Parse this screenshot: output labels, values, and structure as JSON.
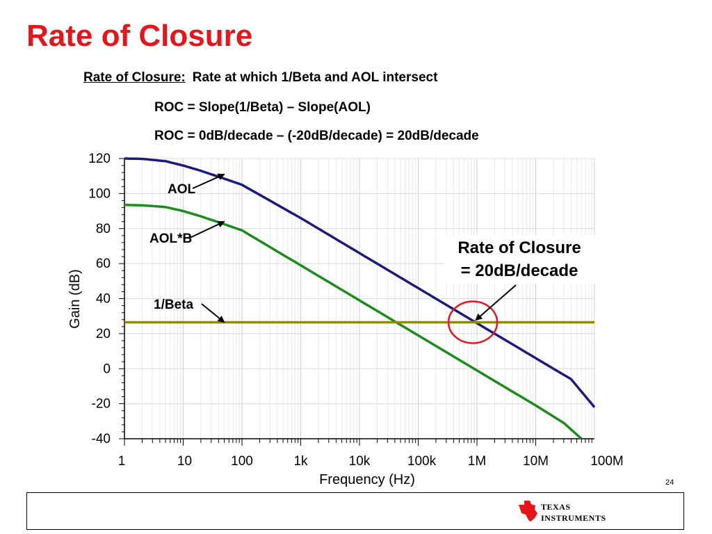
{
  "slide": {
    "title": "Rate of Closure",
    "definition_term": "Rate of Closure:",
    "definition_text": "Rate at which 1/Beta and AOL intersect",
    "equation1": "ROC = Slope(1/Beta) – Slope(AOL)",
    "equation2": "ROC = 0dB/decade – (-20dB/decade) = 20dB/decade",
    "page_number": "24",
    "logo_text_line1": "Texas",
    "logo_text_line2": "Instruments"
  },
  "colors": {
    "title": "#e8141c",
    "aol": "#1a1a80",
    "aol_b": "#1a8c1a",
    "beta": "#8c8c00",
    "highlight": "#e8141c",
    "logo": "#e8141c"
  },
  "chart_data": {
    "type": "line",
    "xlabel": "Frequency (Hz)",
    "ylabel": "Gain (dB)",
    "x_scale": "log",
    "xlim": [
      1,
      100000000
    ],
    "ylim": [
      -40,
      120
    ],
    "x_ticks": [
      {
        "value": 1,
        "label": "1"
      },
      {
        "value": 10,
        "label": "10"
      },
      {
        "value": 100,
        "label": "100"
      },
      {
        "value": 1000,
        "label": "1k"
      },
      {
        "value": 10000,
        "label": "10k"
      },
      {
        "value": 100000,
        "label": "100k"
      },
      {
        "value": 1000000,
        "label": "1M"
      },
      {
        "value": 10000000,
        "label": "10M"
      },
      {
        "value": 100000000,
        "label": "100M"
      }
    ],
    "y_ticks": [
      {
        "value": 120,
        "label": "120"
      },
      {
        "value": 100,
        "label": "100"
      },
      {
        "value": 80,
        "label": "80"
      },
      {
        "value": 60,
        "label": "60"
      },
      {
        "value": 40,
        "label": "40"
      },
      {
        "value": 20,
        "label": "20"
      },
      {
        "value": 0,
        "label": "0"
      },
      {
        "value": -20,
        "label": "-20"
      },
      {
        "value": -40,
        "label": "-40"
      }
    ],
    "grid": true,
    "series": [
      {
        "name": "AOL",
        "color": "#1a1a80",
        "x": [
          1,
          2,
          5,
          10,
          20,
          50,
          100,
          1000,
          10000,
          100000,
          1000000,
          10000000,
          40000000,
          100000000
        ],
        "y": [
          120,
          119.8,
          118.5,
          116,
          113,
          108.5,
          105,
          86,
          66,
          46,
          26,
          6,
          -6,
          -22
        ]
      },
      {
        "name": "AOL*B",
        "color": "#1a8c1a",
        "x": [
          1,
          2,
          5,
          10,
          20,
          50,
          100,
          1000,
          10000,
          100000,
          1000000,
          10000000,
          30000000,
          60000000
        ],
        "y": [
          93.5,
          93.3,
          92.3,
          90,
          87,
          82.5,
          79,
          59,
          39,
          19,
          -1,
          -21,
          -31,
          -40
        ]
      },
      {
        "name": "1/Beta",
        "color": "#8c8c00",
        "x": [
          1,
          100000000
        ],
        "y": [
          26.5,
          26.5
        ]
      }
    ],
    "annotations": [
      {
        "text": "AOL",
        "from": [
          8,
          103
        ],
        "to": [
          50,
          111
        ]
      },
      {
        "text": "AOL*B",
        "from": [
          8,
          74
        ],
        "to": [
          50,
          84
        ]
      },
      {
        "text": "1/Beta",
        "from": [
          8,
          33
        ],
        "to": [
          50,
          26.5
        ]
      },
      {
        "text": "Rate of Closure",
        "text2": "= 20dB/decade",
        "to": [
          850000,
          26.5
        ],
        "circle_at": [
          850000,
          26.5
        ]
      }
    ]
  }
}
